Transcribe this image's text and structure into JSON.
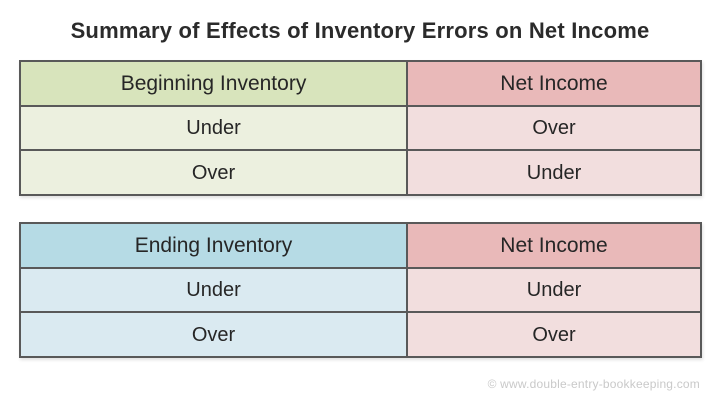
{
  "page": {
    "title": "Summary of Effects of Inventory Errors on Net Income",
    "watermark": "© www.double-entry-bookkeeping.com"
  },
  "tables": [
    {
      "id": "beginning-inventory",
      "headers": [
        "Beginning Inventory",
        "Net Income"
      ],
      "rows": [
        [
          "Under",
          "Over"
        ],
        [
          "Over",
          "Under"
        ]
      ]
    },
    {
      "id": "ending-inventory",
      "headers": [
        "Ending Inventory",
        "Net Income"
      ],
      "rows": [
        [
          "Under",
          "Under"
        ],
        [
          "Over",
          "Over"
        ]
      ]
    }
  ],
  "colors": {
    "green_header": "#d8e4bc",
    "green_body": "#ecf0df",
    "pink_header": "#e9b9b9",
    "pink_body": "#f2dede",
    "blue_header": "#b6dbe5",
    "blue_body": "#daeaf1",
    "border": "#595959",
    "text": "#262626",
    "watermark_text": "#c9c9c9",
    "background": "#ffffff"
  },
  "chart_data": [
    {
      "type": "table",
      "title": "Summary of Effects of Inventory Errors on Net Income",
      "columns": [
        "Beginning Inventory",
        "Net Income"
      ],
      "rows": [
        [
          "Under",
          "Over"
        ],
        [
          "Over",
          "Under"
        ]
      ]
    },
    {
      "type": "table",
      "title": "Summary of Effects of Inventory Errors on Net Income",
      "columns": [
        "Ending Inventory",
        "Net Income"
      ],
      "rows": [
        [
          "Under",
          "Under"
        ],
        [
          "Over",
          "Over"
        ]
      ]
    }
  ]
}
